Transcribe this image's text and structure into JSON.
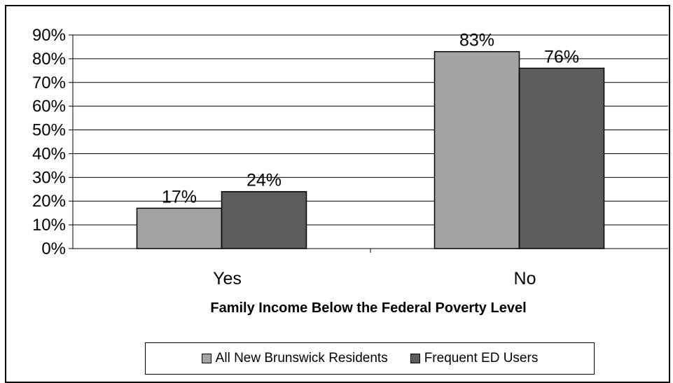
{
  "chart_data": {
    "type": "bar",
    "xlabel": "Family Income Below the Federal Poverty Level",
    "ylabel": "",
    "categories": [
      "Yes",
      "No"
    ],
    "series": [
      {
        "name": "All New Brunswick Residents",
        "values": [
          17,
          83
        ],
        "labels": [
          "17%",
          "83%"
        ],
        "color": "#a3a3a3"
      },
      {
        "name": "Frequent ED Users",
        "values": [
          24,
          76
        ],
        "labels": [
          "24%",
          "76%"
        ],
        "color": "#5c5c5c"
      }
    ],
    "ylim": [
      0,
      90
    ],
    "yticks": [
      "0%",
      "10%",
      "20%",
      "30%",
      "40%",
      "50%",
      "60%",
      "70%",
      "80%",
      "90%"
    ],
    "grid": true,
    "legend_position": "bottom"
  }
}
